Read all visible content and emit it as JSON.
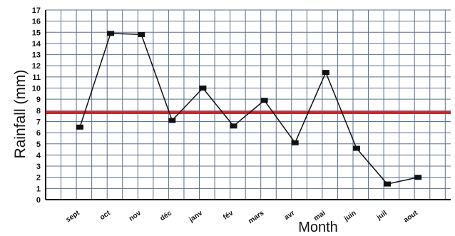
{
  "chart_data": {
    "type": "line",
    "title": "",
    "xlabel": "Month",
    "ylabel": "Rainfall (mm)",
    "ylim": [
      0,
      17
    ],
    "yticks": [
      0,
      1,
      2,
      3,
      4,
      5,
      6,
      7,
      8,
      9,
      10,
      11,
      12,
      13,
      14,
      15,
      16,
      17
    ],
    "grid": true,
    "categories": [
      "sept",
      "oct",
      "nov",
      "déc",
      "janv",
      "fév",
      "mars",
      "avr",
      "mai",
      "juin",
      "juil",
      "aout"
    ],
    "series": [
      {
        "values": [
          6.5,
          14.9,
          14.8,
          7.1,
          10.0,
          6.6,
          8.9,
          5.1,
          11.4,
          4.6,
          1.4,
          2.0
        ],
        "color": "#111111",
        "marker": "square"
      }
    ],
    "reference_line": {
      "value": 7.8,
      "color": "#c62828"
    }
  }
}
